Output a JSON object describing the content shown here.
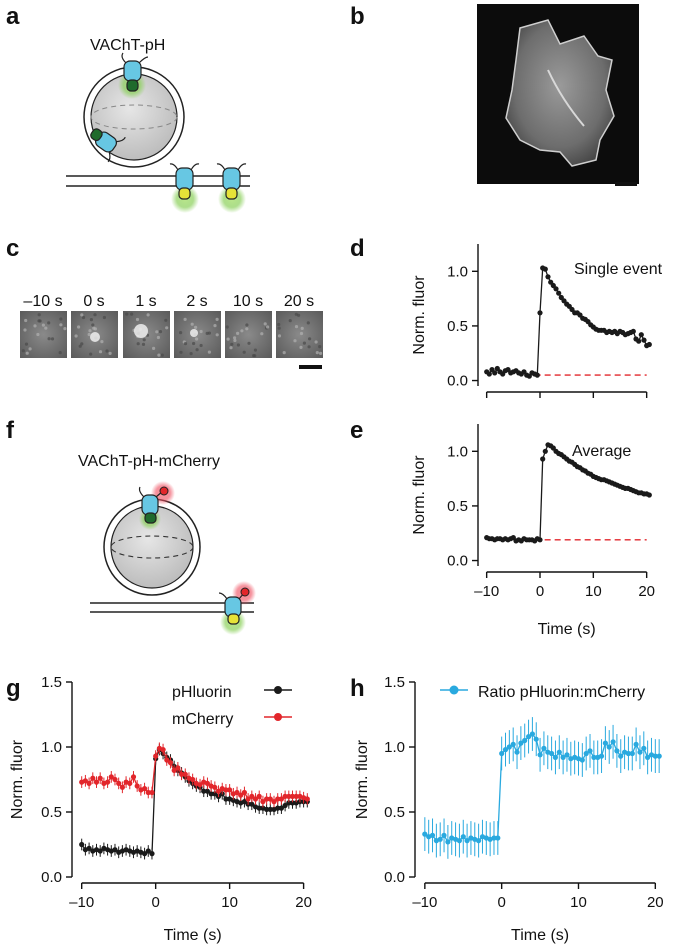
{
  "panels": {
    "a": {
      "label": "a",
      "title": "VAChT-pH"
    },
    "b": {
      "label": "b"
    },
    "c": {
      "label": "c",
      "frames": [
        "–10 s",
        "0 s",
        "1 s",
        "2 s",
        "10 s",
        "20 s"
      ]
    },
    "d": {
      "label": "d"
    },
    "e": {
      "label": "e"
    },
    "f": {
      "label": "f",
      "title": "VAChT-pH-mCherry"
    },
    "g": {
      "label": "g"
    },
    "h": {
      "label": "h"
    }
  },
  "colors": {
    "black": "#1a1a1a",
    "red": "#e2262b",
    "cyan": "#29a9df",
    "dashed": "#e2262b",
    "protein": "#67c7e3",
    "green_core": "#1f6b2c",
    "yellow_core": "#e6e238",
    "glow_green": "#8bd05b",
    "glow_red": "#ee4a5c"
  },
  "chart_data": [
    {
      "id": "d",
      "type": "line",
      "annotation": "Single event",
      "xlabel": "",
      "ylabel": "Norm. fluor",
      "xlim": [
        -10.5,
        21
      ],
      "ylim": [
        -0.05,
        1.25
      ],
      "xticks": [],
      "yticks": [
        "0.0",
        "0.5",
        "1.0"
      ],
      "baseline": 0.05,
      "series": [
        {
          "name": "single",
          "x_start": -10,
          "dx": 0.5,
          "values": [
            0.08,
            0.06,
            0.1,
            0.07,
            0.11,
            0.08,
            0.06,
            0.09,
            0.1,
            0.07,
            0.08,
            0.09,
            0.07,
            0.06,
            0.08,
            0.05,
            0.04,
            0.07,
            0.06,
            0.05,
            0.62,
            1.03,
            1.02,
            0.95,
            0.9,
            0.87,
            0.84,
            0.8,
            0.76,
            0.73,
            0.7,
            0.68,
            0.65,
            0.62,
            0.62,
            0.6,
            0.57,
            0.56,
            0.54,
            0.51,
            0.49,
            0.47,
            0.46,
            0.46,
            0.46,
            0.44,
            0.45,
            0.44,
            0.45,
            0.43,
            0.45,
            0.44,
            0.42,
            0.43,
            0.44,
            0.45,
            0.38,
            0.36,
            0.42,
            0.37,
            0.32,
            0.33
          ]
        }
      ]
    },
    {
      "id": "e",
      "type": "line",
      "annotation": "Average",
      "xlabel": "Time (s)",
      "ylabel": "Norm. fluor",
      "xlim": [
        -10.5,
        21
      ],
      "ylim": [
        -0.05,
        1.25
      ],
      "xticks": [
        "–10",
        "0",
        "10",
        "20"
      ],
      "yticks": [
        "0.0",
        "0.5",
        "1.0"
      ],
      "baseline": 0.19,
      "series": [
        {
          "name": "average",
          "x_start": -10,
          "dx": 0.5,
          "values": [
            0.21,
            0.2,
            0.2,
            0.19,
            0.2,
            0.2,
            0.19,
            0.2,
            0.19,
            0.2,
            0.21,
            0.18,
            0.19,
            0.18,
            0.2,
            0.19,
            0.19,
            0.19,
            0.18,
            0.2,
            0.19,
            0.93,
            1.0,
            1.06,
            1.05,
            1.03,
            1.0,
            0.98,
            0.97,
            0.95,
            0.93,
            0.91,
            0.9,
            0.88,
            0.86,
            0.85,
            0.83,
            0.82,
            0.8,
            0.79,
            0.77,
            0.76,
            0.75,
            0.74,
            0.74,
            0.73,
            0.72,
            0.71,
            0.7,
            0.69,
            0.68,
            0.67,
            0.66,
            0.66,
            0.65,
            0.64,
            0.63,
            0.62,
            0.62,
            0.61,
            0.61,
            0.6
          ]
        }
      ]
    },
    {
      "id": "g",
      "type": "line",
      "xlabel": "Time (s)",
      "ylabel": "Norm. fluor",
      "xlim": [
        -10.5,
        21
      ],
      "ylim": [
        0,
        1.5
      ],
      "xticks": [
        "–10",
        "0",
        "10",
        "20"
      ],
      "yticks": [
        "0.0",
        "0.5",
        "1.0",
        "1.5"
      ],
      "series": [
        {
          "name": "pHluorin",
          "color": "#1a1a1a",
          "x_start": -10,
          "dx": 0.5,
          "values": [
            0.25,
            0.21,
            0.22,
            0.2,
            0.21,
            0.2,
            0.22,
            0.21,
            0.2,
            0.21,
            0.19,
            0.2,
            0.21,
            0.2,
            0.19,
            0.2,
            0.19,
            0.18,
            0.2,
            0.18,
            0.91,
            0.98,
            0.95,
            0.92,
            0.9,
            0.85,
            0.82,
            0.8,
            0.77,
            0.74,
            0.72,
            0.7,
            0.69,
            0.66,
            0.66,
            0.64,
            0.64,
            0.62,
            0.64,
            0.6,
            0.6,
            0.59,
            0.58,
            0.57,
            0.58,
            0.56,
            0.56,
            0.54,
            0.53,
            0.53,
            0.52,
            0.52,
            0.52,
            0.53,
            0.53,
            0.55,
            0.57,
            0.57,
            0.57,
            0.58,
            0.58,
            0.58
          ]
        },
        {
          "name": "mCherry",
          "color": "#e2262b",
          "x_start": -10,
          "dx": 0.5,
          "values": [
            0.73,
            0.74,
            0.72,
            0.76,
            0.73,
            0.76,
            0.72,
            0.73,
            0.77,
            0.75,
            0.72,
            0.69,
            0.73,
            0.72,
            0.77,
            0.7,
            0.67,
            0.68,
            0.65,
            0.65,
            0.93,
            0.99,
            0.98,
            0.9,
            0.88,
            0.82,
            0.84,
            0.79,
            0.79,
            0.76,
            0.75,
            0.72,
            0.71,
            0.73,
            0.72,
            0.7,
            0.69,
            0.66,
            0.68,
            0.67,
            0.67,
            0.64,
            0.65,
            0.63,
            0.65,
            0.6,
            0.62,
            0.6,
            0.62,
            0.58,
            0.6,
            0.6,
            0.58,
            0.6,
            0.6,
            0.62,
            0.62,
            0.62,
            0.62,
            0.62,
            0.61,
            0.6
          ]
        }
      ]
    },
    {
      "id": "h",
      "type": "line",
      "xlabel": "Time (s)",
      "ylabel": "Norm. fluor",
      "xlim": [
        -10.5,
        21
      ],
      "ylim": [
        0,
        1.5
      ],
      "xticks": [
        "–10",
        "0",
        "10",
        "20"
      ],
      "yticks": [
        "0.0",
        "0.5",
        "1.0",
        "1.5"
      ],
      "series": [
        {
          "name": "Ratio pHluorin:mCherry",
          "color": "#29a9df",
          "x_start": -10,
          "dx": 0.5,
          "values": [
            0.33,
            0.31,
            0.32,
            0.28,
            0.29,
            0.32,
            0.27,
            0.3,
            0.29,
            0.28,
            0.31,
            0.28,
            0.3,
            0.29,
            0.28,
            0.31,
            0.3,
            0.29,
            0.3,
            0.3,
            0.95,
            0.98,
            1.0,
            1.02,
            0.96,
            1.03,
            1.05,
            1.08,
            1.1,
            1.06,
            0.94,
            0.99,
            0.96,
            0.95,
            0.92,
            0.96,
            0.92,
            0.94,
            0.91,
            0.92,
            0.91,
            0.9,
            0.95,
            0.97,
            0.92,
            0.92,
            0.93,
            1.03,
            1.0,
            1.04,
            0.97,
            0.93,
            0.96,
            0.95,
            0.95,
            1.02,
            0.96,
            0.99,
            0.92,
            0.94,
            0.93,
            0.93
          ]
        }
      ]
    }
  ]
}
